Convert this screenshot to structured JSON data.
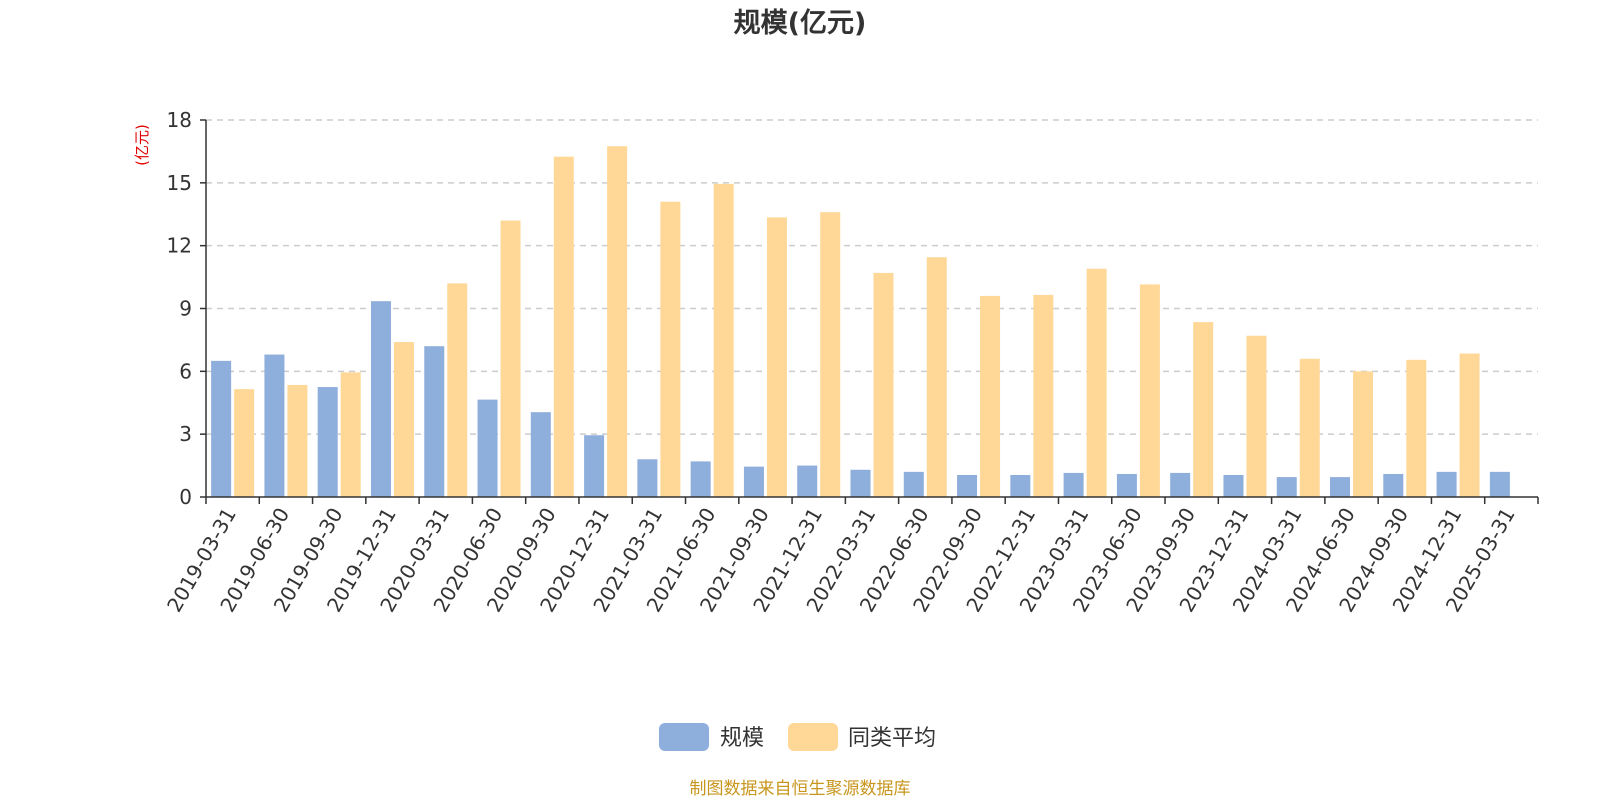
{
  "chart_data": {
    "type": "bar",
    "title": "规模(亿元)",
    "ylabel": "(亿元)",
    "xlabel": "",
    "ylim": [
      0,
      18
    ],
    "yticks": [
      0,
      3,
      6,
      9,
      12,
      15,
      18
    ],
    "grid": true,
    "legend_position": "bottom",
    "categories": [
      "2019-03-31",
      "2019-06-30",
      "2019-09-30",
      "2019-12-31",
      "2020-03-31",
      "2020-06-30",
      "2020-09-30",
      "2020-12-31",
      "2021-03-31",
      "2021-06-30",
      "2021-09-30",
      "2021-12-31",
      "2022-03-31",
      "2022-06-30",
      "2022-09-30",
      "2022-12-31",
      "2023-03-31",
      "2023-06-30",
      "2023-09-30",
      "2023-12-31",
      "2024-03-31",
      "2024-06-30",
      "2024-09-30",
      "2024-12-31",
      "2025-03-31"
    ],
    "series": [
      {
        "name": "规模",
        "color": "#8eaedb",
        "values": [
          6.5,
          6.8,
          5.25,
          9.35,
          7.2,
          4.65,
          4.05,
          2.95,
          1.8,
          1.7,
          1.45,
          1.5,
          1.3,
          1.2,
          1.05,
          1.05,
          1.15,
          1.1,
          1.15,
          1.05,
          0.95,
          0.95,
          1.1,
          1.2,
          1.2
        ]
      },
      {
        "name": "同类平均",
        "color": "#ffd898",
        "values": [
          5.15,
          5.35,
          5.95,
          7.4,
          10.2,
          13.2,
          16.25,
          16.75,
          14.1,
          14.95,
          13.35,
          13.6,
          10.7,
          11.45,
          9.6,
          9.65,
          10.9,
          10.15,
          8.35,
          7.7,
          6.6,
          6.0,
          6.55,
          6.85,
          null
        ]
      }
    ],
    "source": "制图数据来自恒生聚源数据库"
  }
}
